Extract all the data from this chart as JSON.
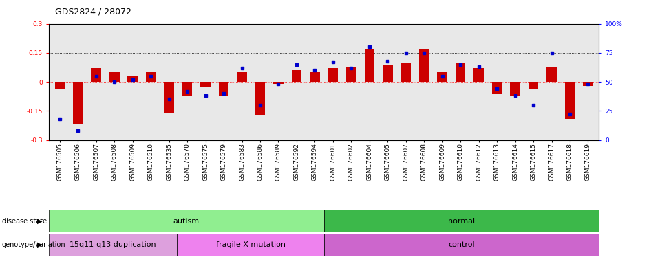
{
  "title": "GDS2824 / 28072",
  "samples": [
    "GSM176505",
    "GSM176506",
    "GSM176507",
    "GSM176508",
    "GSM176509",
    "GSM176510",
    "GSM176535",
    "GSM176570",
    "GSM176575",
    "GSM176579",
    "GSM176583",
    "GSM176586",
    "GSM176589",
    "GSM176592",
    "GSM176594",
    "GSM176601",
    "GSM176602",
    "GSM176604",
    "GSM176605",
    "GSM176607",
    "GSM176608",
    "GSM176609",
    "GSM176610",
    "GSM176612",
    "GSM176613",
    "GSM176614",
    "GSM176615",
    "GSM176617",
    "GSM176618",
    "GSM176619"
  ],
  "log_ratio": [
    -0.04,
    -0.22,
    0.07,
    0.05,
    0.03,
    0.05,
    -0.16,
    -0.07,
    -0.03,
    -0.07,
    0.05,
    -0.17,
    -0.01,
    0.06,
    0.05,
    0.07,
    0.08,
    0.17,
    0.09,
    0.1,
    0.17,
    0.05,
    0.1,
    0.07,
    -0.06,
    -0.07,
    -0.04,
    0.08,
    -0.19,
    -0.02
  ],
  "percentile": [
    18,
    8,
    55,
    50,
    52,
    55,
    35,
    42,
    38,
    40,
    62,
    30,
    48,
    65,
    60,
    67,
    62,
    80,
    68,
    75,
    75,
    55,
    65,
    63,
    44,
    38,
    30,
    75,
    22,
    48
  ],
  "disease_state_groups": [
    {
      "label": "autism",
      "start": 0,
      "end": 15,
      "color": "#90EE90"
    },
    {
      "label": "normal",
      "start": 15,
      "end": 30,
      "color": "#3CB84A"
    }
  ],
  "genotype_groups": [
    {
      "label": "15q11-q13 duplication",
      "start": 0,
      "end": 7,
      "color": "#DDA0DD"
    },
    {
      "label": "fragile X mutation",
      "start": 7,
      "end": 15,
      "color": "#EE82EE"
    },
    {
      "label": "control",
      "start": 15,
      "end": 30,
      "color": "#CC66CC"
    }
  ],
  "ylim": [
    -0.3,
    0.3
  ],
  "y2lim": [
    0,
    100
  ],
  "bar_color": "#CC0000",
  "dot_color": "#0000CC",
  "plot_bg": "#E8E8E8",
  "title_fontsize": 9,
  "tick_fontsize": 6.5,
  "label_fontsize": 8
}
